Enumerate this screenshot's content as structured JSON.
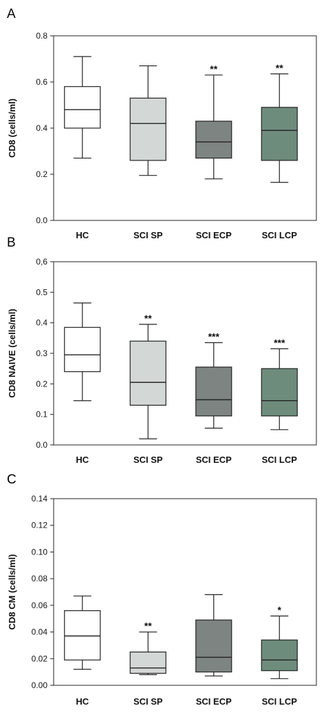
{
  "colors": {
    "HC": "#ffffff",
    "SCI SP": "#d3d7d5",
    "SCI ECP": "#7e8482",
    "SCI LCP": "#6e8c7c",
    "stroke": "#222222"
  },
  "chart_data": [
    {
      "type": "box",
      "panel": "A",
      "ylabel": "CD8 (cells/ml)",
      "ylim": [
        0,
        0.8
      ],
      "yticks": [
        "0.0",
        "0.2",
        "0.4",
        "0.6",
        "0.8"
      ],
      "categories": [
        "HC",
        "SCI SP",
        "SCI ECP",
        "SCI LCP"
      ],
      "boxes": [
        {
          "min": 0.27,
          "q1": 0.4,
          "median": 0.48,
          "q3": 0.58,
          "max": 0.71,
          "sig": ""
        },
        {
          "min": 0.195,
          "q1": 0.26,
          "median": 0.42,
          "q3": 0.53,
          "max": 0.67,
          "sig": ""
        },
        {
          "min": 0.18,
          "q1": 0.27,
          "median": 0.34,
          "q3": 0.43,
          "max": 0.63,
          "sig": "**"
        },
        {
          "min": 0.165,
          "q1": 0.26,
          "median": 0.39,
          "q3": 0.49,
          "max": 0.635,
          "sig": "**"
        }
      ]
    },
    {
      "type": "box",
      "panel": "B",
      "ylabel": "CD8 NAIVE (cells/ml)",
      "ylim": [
        0,
        0.6
      ],
      "yticks": [
        "0.0",
        "0.1",
        "0.2",
        "0.3",
        "0.4",
        "0.5",
        "0,6"
      ],
      "categories": [
        "HC",
        "SCI SP",
        "SCI ECP",
        "SCI LCP"
      ],
      "boxes": [
        {
          "min": 0.145,
          "q1": 0.24,
          "median": 0.295,
          "q3": 0.385,
          "max": 0.465,
          "sig": ""
        },
        {
          "min": 0.02,
          "q1": 0.13,
          "median": 0.205,
          "q3": 0.34,
          "max": 0.395,
          "sig": "**"
        },
        {
          "min": 0.055,
          "q1": 0.095,
          "median": 0.148,
          "q3": 0.255,
          "max": 0.335,
          "sig": "***"
        },
        {
          "min": 0.05,
          "q1": 0.095,
          "median": 0.145,
          "q3": 0.25,
          "max": 0.315,
          "sig": "***"
        }
      ]
    },
    {
      "type": "box",
      "panel": "C",
      "ylabel": "CD8 CM (cells/ml)",
      "ylim": [
        0,
        0.14
      ],
      "yticks": [
        "0.00",
        "0.02",
        "0.04",
        "0.06",
        "0.08",
        "0.10",
        "0.12",
        "0.14"
      ],
      "categories": [
        "HC",
        "SCI SP",
        "SCI ECP",
        "SCI LCP"
      ],
      "boxes": [
        {
          "min": 0.012,
          "q1": 0.019,
          "median": 0.037,
          "q3": 0.056,
          "max": 0.067,
          "sig": ""
        },
        {
          "min": 0.008,
          "q1": 0.009,
          "median": 0.013,
          "q3": 0.025,
          "max": 0.04,
          "sig": "**"
        },
        {
          "min": 0.007,
          "q1": 0.01,
          "median": 0.021,
          "q3": 0.049,
          "max": 0.068,
          "sig": ""
        },
        {
          "min": 0.005,
          "q1": 0.011,
          "median": 0.019,
          "q3": 0.034,
          "max": 0.052,
          "sig": "*"
        }
      ]
    }
  ]
}
